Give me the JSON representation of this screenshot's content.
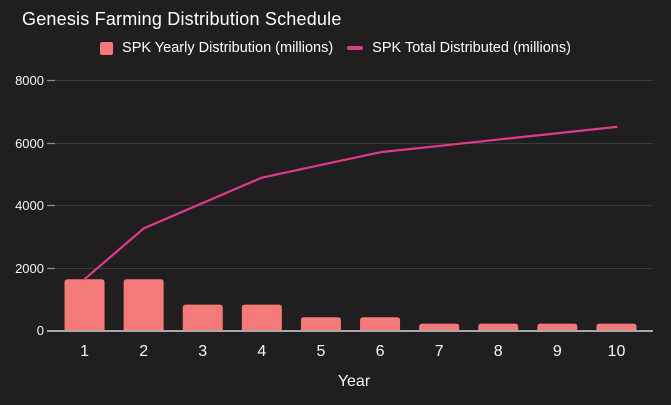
{
  "page": {
    "background": "#201e1e"
  },
  "legend": {
    "items": [
      {
        "label": "SPK Yearly Distribution (millions)",
        "marker": "square",
        "color": "#f47a7a"
      },
      {
        "label": "SPK Total Distributed (millions)",
        "marker": "line",
        "color": "#e13a8c"
      }
    ]
  },
  "chart_data": {
    "type": "bar",
    "title": "Genesis Farming Distribution Schedule",
    "categories": [
      "1",
      "2",
      "3",
      "4",
      "5",
      "6",
      "7",
      "8",
      "9",
      "10"
    ],
    "series": [
      {
        "name": "SPK Yearly Distribution (millions)",
        "type": "bar",
        "color": "#f47a7a",
        "values": [
          1625,
          1625,
          812.5,
          812.5,
          406.25,
          406.25,
          203.125,
          203.125,
          203.125,
          203.125
        ]
      },
      {
        "name": "SPK Total Distributed (millions)",
        "type": "line",
        "color": "#e13a8c",
        "values": [
          1625,
          3250,
          4062.5,
          4875,
          5281.25,
          5687.5,
          5890.625,
          6093.75,
          6296.875,
          6500
        ]
      }
    ],
    "xlabel": "Year",
    "ylabel": "",
    "ylim": [
      0,
      8000
    ],
    "y_ticks": [
      0,
      2000,
      4000,
      6000,
      8000
    ],
    "grid": true,
    "legend_position": "top",
    "colors": {
      "background": "#201e1e",
      "gridline": "#3b3b3b",
      "axis_line": "#a8a8a8",
      "tick_mark": "#8f8f8f",
      "tick_label": "#f5f5f5",
      "title_text": "#ffffff"
    }
  }
}
